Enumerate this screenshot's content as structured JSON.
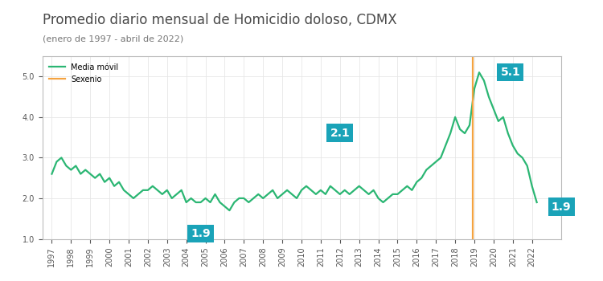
{
  "chart_data": {
    "type": "line",
    "title": "Promedio diario mensual de Homicidio doloso, CDMX",
    "subtitle": "(enero de 1997 - abril de 2022)",
    "series": [
      {
        "name": "Media móvil",
        "color": "#2bb673",
        "type": "line",
        "line_style": "solid",
        "x": [
          1997.0,
          1997.25,
          1997.5,
          1997.75,
          1998.0,
          1998.25,
          1998.5,
          1998.75,
          1999.0,
          1999.25,
          1999.5,
          1999.75,
          2000.0,
          2000.25,
          2000.5,
          2000.75,
          2001.0,
          2001.25,
          2001.5,
          2001.75,
          2002.0,
          2002.25,
          2002.5,
          2002.75,
          2003.0,
          2003.25,
          2003.5,
          2003.75,
          2004.0,
          2004.25,
          2004.5,
          2004.75,
          2005.0,
          2005.25,
          2005.5,
          2005.75,
          2006.0,
          2006.25,
          2006.5,
          2006.75,
          2007.0,
          2007.25,
          2007.5,
          2007.75,
          2008.0,
          2008.25,
          2008.5,
          2008.75,
          2009.0,
          2009.25,
          2009.5,
          2009.75,
          2010.0,
          2010.25,
          2010.5,
          2010.75,
          2011.0,
          2011.25,
          2011.5,
          2011.75,
          2012.0,
          2012.25,
          2012.5,
          2012.75,
          2013.0,
          2013.25,
          2013.5,
          2013.75,
          2014.0,
          2014.25,
          2014.5,
          2014.75,
          2015.0,
          2015.25,
          2015.5,
          2015.75,
          2016.0,
          2016.25,
          2016.5,
          2016.75,
          2017.0,
          2017.25,
          2017.5,
          2017.75,
          2018.0,
          2018.25,
          2018.5,
          2018.75,
          2019.0,
          2019.25,
          2019.5,
          2019.75,
          2020.0,
          2020.25,
          2020.5,
          2020.75,
          2021.0,
          2021.25,
          2021.5,
          2021.75,
          2022.0,
          2022.25
        ],
        "values": [
          2.6,
          2.9,
          3.0,
          2.8,
          2.7,
          2.8,
          2.6,
          2.7,
          2.6,
          2.5,
          2.6,
          2.4,
          2.5,
          2.3,
          2.4,
          2.2,
          2.1,
          2.0,
          2.1,
          2.2,
          2.2,
          2.3,
          2.2,
          2.1,
          2.2,
          2.0,
          2.1,
          2.2,
          1.9,
          2.0,
          1.9,
          1.9,
          2.0,
          1.9,
          2.1,
          1.9,
          1.8,
          1.7,
          1.9,
          2.0,
          2.0,
          1.9,
          2.0,
          2.1,
          2.0,
          2.1,
          2.2,
          2.0,
          2.1,
          2.2,
          2.1,
          2.0,
          2.2,
          2.3,
          2.2,
          2.1,
          2.2,
          2.1,
          2.3,
          2.2,
          2.1,
          2.2,
          2.1,
          2.2,
          2.3,
          2.2,
          2.1,
          2.2,
          2.0,
          1.9,
          2.0,
          2.1,
          2.1,
          2.2,
          2.3,
          2.2,
          2.4,
          2.5,
          2.7,
          2.8,
          2.9,
          3.0,
          3.3,
          3.6,
          4.0,
          3.7,
          3.6,
          3.8,
          4.7,
          5.1,
          4.9,
          4.5,
          4.2,
          3.9,
          4.0,
          3.6,
          3.3,
          3.1,
          3.0,
          2.8,
          2.3,
          1.9
        ]
      },
      {
        "name": "Sexenio",
        "color": "#f4a340",
        "type": "line",
        "line_style": "solid",
        "x": [
          2018.92,
          2018.92
        ],
        "values": [
          1.0,
          5.5
        ]
      }
    ],
    "annotations": [
      {
        "text": "5.1",
        "x": 2019.25,
        "y": 5.1
      },
      {
        "text": "2.1",
        "x": 2012.0,
        "y": 2.1
      },
      {
        "text": "1.9",
        "x": 2004.75,
        "y": 1.9
      },
      {
        "text": "1.9",
        "x": 2022.25,
        "y": 1.9
      }
    ],
    "xlim": [
      1996.5,
      2023.5
    ],
    "xticks": [
      1997,
      1998,
      1999,
      2000,
      2001,
      2002,
      2003,
      2004,
      2005,
      2006,
      2007,
      2008,
      2009,
      2010,
      2011,
      2012,
      2013,
      2014,
      2015,
      2016,
      2017,
      2018,
      2019,
      2020,
      2021,
      2022
    ],
    "ylim": [
      1.0,
      5.5
    ],
    "yticks": [
      {
        "value": 1,
        "label": "1.0"
      },
      {
        "value": 2,
        "label": "2.0"
      },
      {
        "value": 3,
        "label": "3.0"
      },
      {
        "value": 4,
        "label": "4.0"
      },
      {
        "value": 5,
        "label": "5.0"
      }
    ],
    "grid": true,
    "legend": "upper left"
  }
}
